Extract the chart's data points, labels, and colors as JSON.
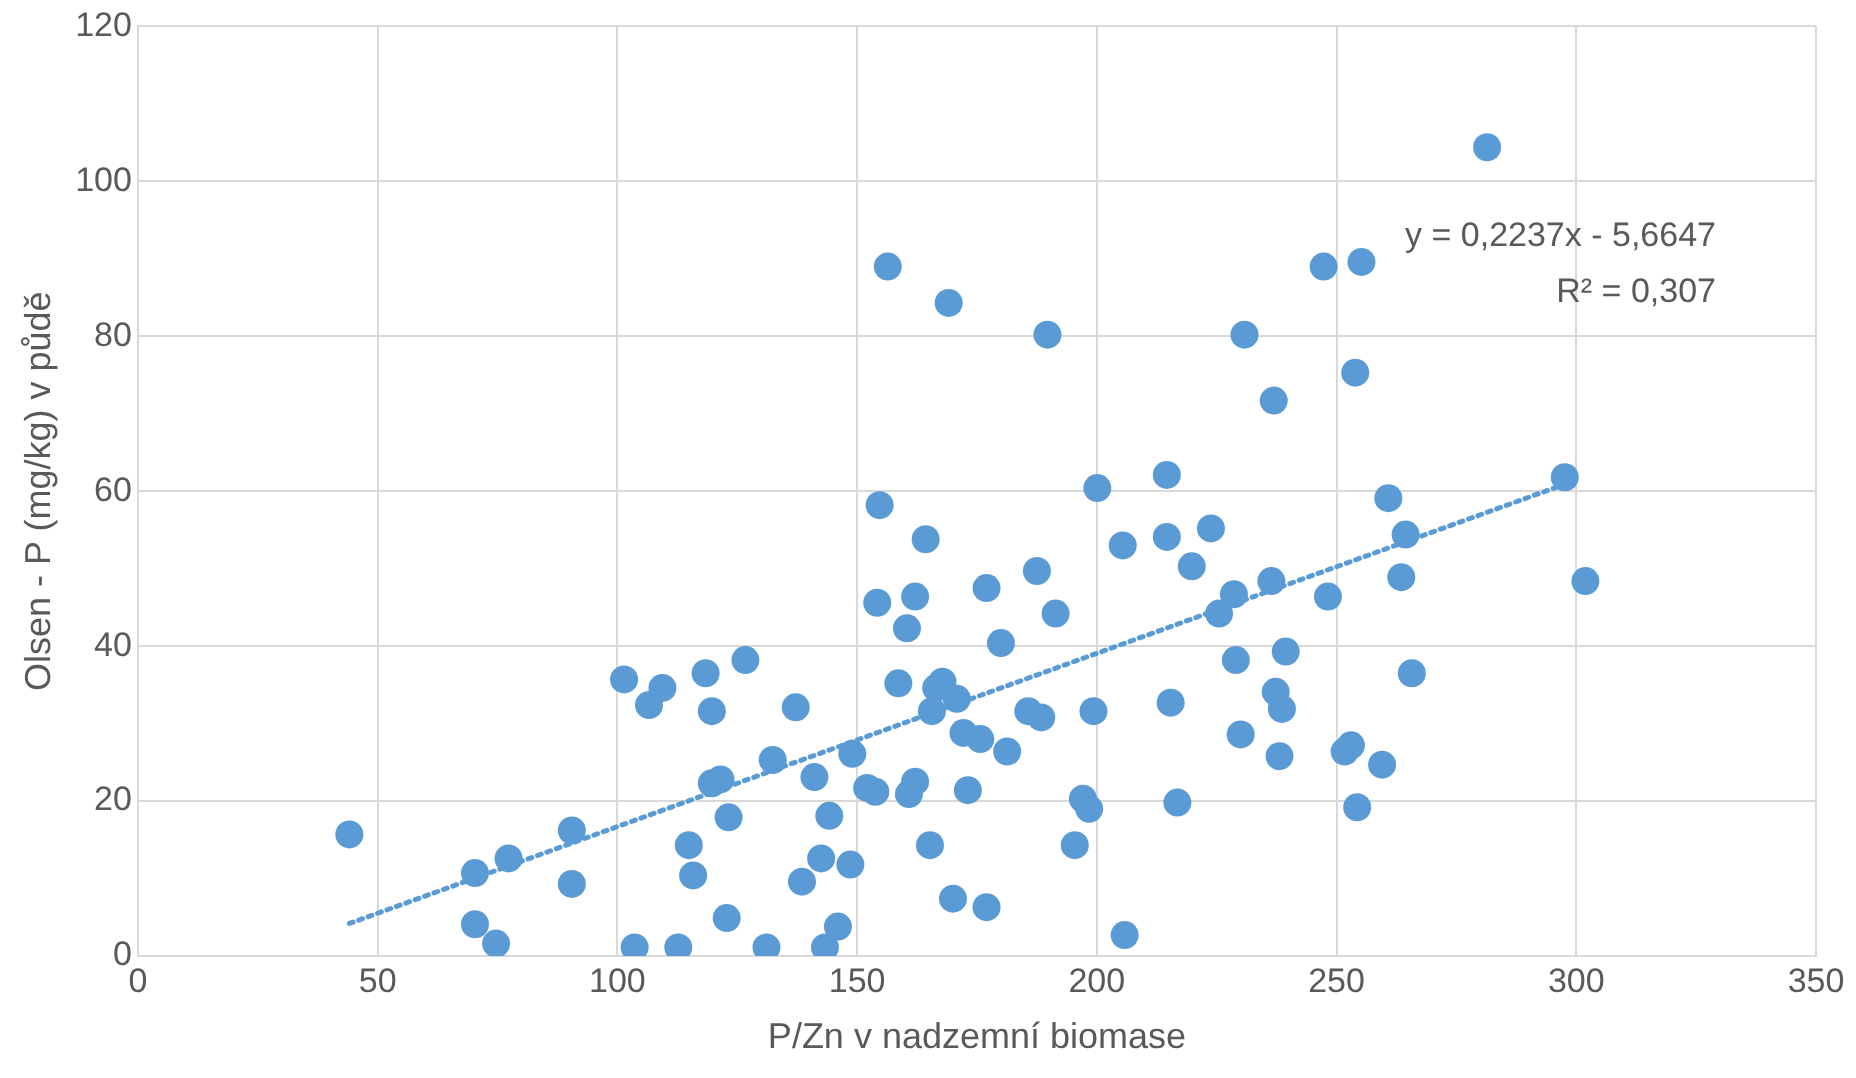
{
  "chart_data": {
    "type": "scatter",
    "xlabel": "P/Zn v nadzemní biomase",
    "ylabel": "Olsen - P (mg/kg) v půdě",
    "xlim": [
      0,
      350
    ],
    "xticks": [
      0,
      50,
      100,
      150,
      200,
      250,
      300,
      350
    ],
    "ylim": [
      0,
      120
    ],
    "yticks": [
      0,
      20,
      40,
      60,
      80,
      100,
      120
    ],
    "grid": true,
    "legend": false,
    "marker": "circle",
    "annotations": [
      "y = 0,2237x - 5,6647",
      "R² = 0,307"
    ],
    "series": [
      {
        "color": "#5b9bd5",
        "x": [
          44.1,
          70.3,
          70.3,
          74.7,
          77.3,
          90.5,
          90.5,
          101.4,
          103.6,
          106.6,
          109.4,
          112.7,
          114.9,
          115.8,
          118.4,
          119.7,
          119.7,
          121.5,
          122.8,
          123.2,
          126.7,
          131.1,
          132.4,
          137.2,
          138.5,
          141.1,
          142.5,
          143.3,
          144.2,
          146.0,
          148.6,
          149.0,
          152.1,
          153.8,
          154.2,
          154.7,
          156.4,
          158.6,
          160.4,
          160.8,
          162.1,
          162.1,
          164.3,
          165.2,
          165.6,
          166.5,
          167.8,
          169.1,
          170.0,
          170.8,
          172.2,
          173.1,
          175.7,
          177.0,
          177.0,
          180.0,
          181.3,
          185.7,
          187.5,
          188.4,
          189.7,
          191.4,
          195.4,
          197.1,
          198.4,
          199.3,
          200.1,
          205.4,
          205.8,
          214.6,
          214.6,
          215.4,
          216.8,
          219.8,
          223.8,
          225.5,
          228.6,
          229.0,
          230.0,
          230.8,
          236.4,
          236.9,
          237.3,
          238.1,
          238.6,
          239.4,
          247.3,
          248.2,
          251.7,
          253.0,
          253.9,
          254.3,
          255.2,
          259.5,
          260.8,
          263.5,
          264.4,
          265.7,
          281.4,
          297.6,
          301.9
        ],
        "values": [
          15.7,
          10.7,
          4.1,
          1.6,
          12.6,
          16.2,
          9.3,
          35.7,
          1.1,
          32.4,
          34.6,
          1.1,
          14.3,
          10.4,
          36.5,
          31.6,
          22.3,
          22.8,
          4.9,
          17.9,
          38.2,
          1.1,
          25.3,
          32.1,
          9.6,
          23.1,
          12.6,
          1.1,
          18.1,
          3.8,
          11.8,
          26.1,
          21.7,
          21.2,
          45.6,
          58.2,
          89.0,
          35.2,
          42.3,
          20.9,
          46.4,
          22.5,
          53.8,
          14.3,
          31.6,
          34.6,
          35.4,
          84.3,
          7.4,
          33.2,
          28.8,
          21.4,
          28.0,
          6.3,
          47.5,
          40.4,
          26.4,
          31.6,
          49.7,
          30.8,
          80.2,
          44.2,
          14.3,
          20.3,
          19.0,
          31.6,
          60.4,
          53.0,
          2.7,
          62.1,
          54.1,
          32.7,
          19.8,
          50.3,
          55.2,
          44.2,
          46.7,
          38.2,
          28.6,
          80.2,
          48.4,
          71.7,
          34.1,
          25.8,
          31.9,
          39.3,
          89.0,
          46.4,
          26.4,
          27.2,
          75.3,
          19.2,
          89.6,
          24.7,
          59.1,
          48.9,
          54.4,
          36.5,
          104.4,
          61.8,
          48.4
        ]
      },
      {
        "type": "line",
        "color": "#5b9bd5",
        "line_style": "dotted",
        "marker": "none",
        "x": [
          44.1,
          297.6
        ],
        "values": [
          4.2,
          60.9
        ]
      }
    ]
  }
}
